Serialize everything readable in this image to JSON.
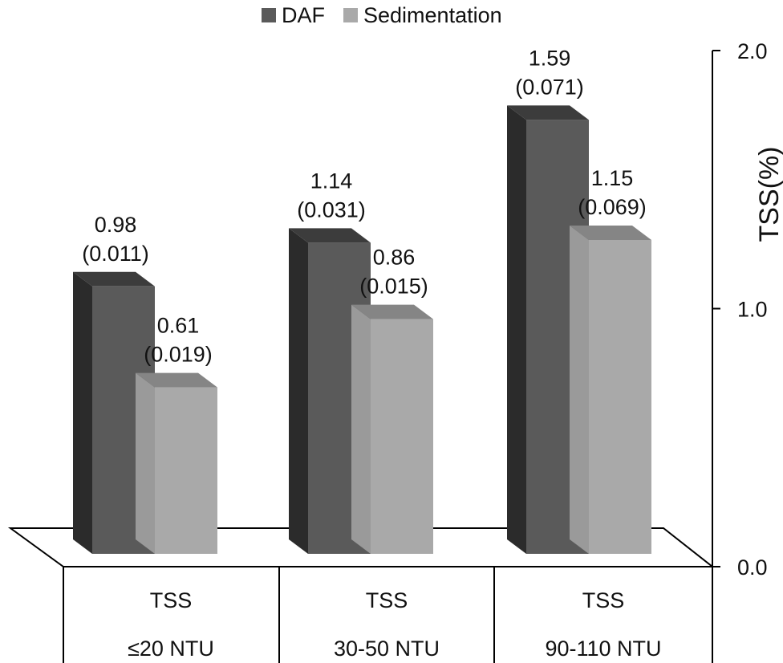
{
  "chart_data": {
    "type": "bar",
    "categories_line1": [
      "TSS",
      "TSS",
      "TSS"
    ],
    "categories_line2": [
      "≤20 NTU",
      "30-50 NTU",
      "90-110 NTU"
    ],
    "series": [
      {
        "name": "DAF",
        "values": [
          0.98,
          1.14,
          1.59
        ],
        "errors": [
          0.011,
          0.031,
          0.071
        ],
        "value_labels": [
          "0.98",
          "1.14",
          "1.59"
        ],
        "error_labels": [
          "(0.011)",
          "(0.031)",
          "(0.071)"
        ],
        "color": "#5a5a5a",
        "side_color": "#2b2b2b",
        "top_color": "#3c3c3c"
      },
      {
        "name": "Sedimentation",
        "values": [
          0.61,
          0.86,
          1.15
        ],
        "errors": [
          0.019,
          0.015,
          0.069
        ],
        "value_labels": [
          "0.61",
          "0.86",
          "1.15"
        ],
        "error_labels": [
          "(0.019)",
          "(0.015)",
          "(0.069)"
        ],
        "color": "#a9a9a9",
        "side_color": "#9a9a9a",
        "top_color": "#858585"
      }
    ],
    "ylabel": "TSS(%)",
    "ylim": [
      0,
      2
    ],
    "yticks": [
      0,
      1,
      2
    ],
    "ytick_labels": [
      "0.0",
      "1.0",
      "2.0"
    ],
    "yaxis_side": "right",
    "legend_position": "top-center",
    "style": "3d-bar"
  }
}
